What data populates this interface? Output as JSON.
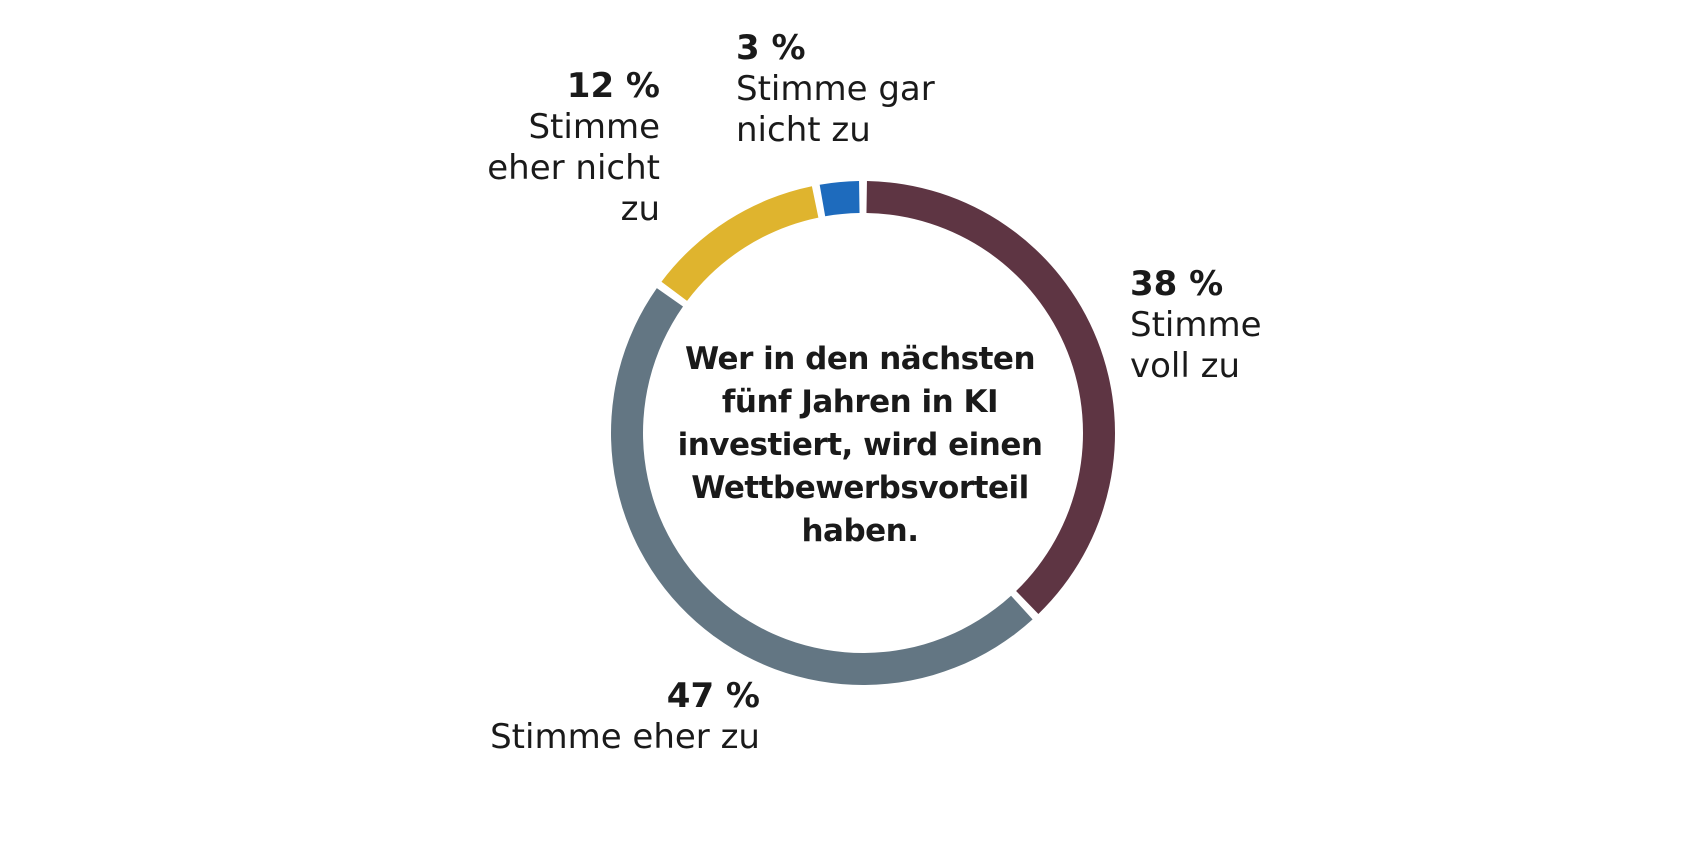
{
  "chart_data": {
    "type": "pie",
    "title": "Wer in den nächsten fünf Jahren in KI investiert, wird einen Wettbewerbsvorteil haben.",
    "slices": [
      {
        "label": "Stimme voll zu",
        "value": 38,
        "value_text": "38 %",
        "color": "#5e3543"
      },
      {
        "label": "Stimme eher zu",
        "value": 47,
        "value_text": "47 %",
        "color": "#637683"
      },
      {
        "label": "Stimme eher nicht zu",
        "value": 12,
        "value_text": "12 %",
        "color": "#dfb42e"
      },
      {
        "label": "Stimme gar nicht zu",
        "value": 3,
        "value_text": "3 %",
        "color": "#1e6bbd"
      }
    ],
    "donut": true,
    "start": "top",
    "direction": "clockwise",
    "legend": "none"
  }
}
